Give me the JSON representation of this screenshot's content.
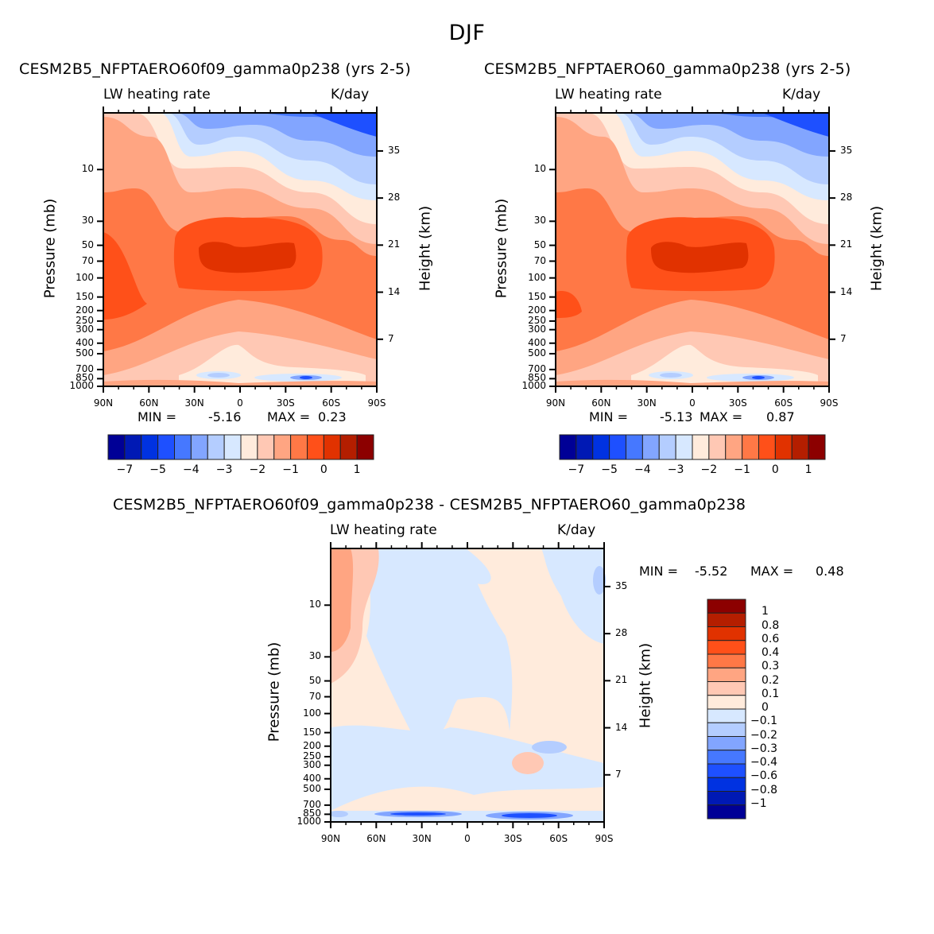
{
  "figure_title": "DJF",
  "palette": [
    "#000096",
    "#0019B4",
    "#0032E1",
    "#1E50FF",
    "#4678FF",
    "#82A5FF",
    "#B4CDFF",
    "#D7E8FF",
    "#FFEBDC",
    "#FFC8B4",
    "#FFA582",
    "#FF7846",
    "#FF5019",
    "#E13200",
    "#B41E00",
    "#8C0000"
  ],
  "chart_data": [
    {
      "type": "heatmap",
      "subtype": "latitude-pressure contour",
      "title": "CESM2B5_NFPTAERO60f09_gamma0p238 (yrs 2-5)",
      "variable_label": "LW heating rate",
      "units_label": "K/day",
      "xlabel": "",
      "ylabel": "Pressure (mb)",
      "y2label": "Height (km)",
      "x_ticks": [
        "90N",
        "60N",
        "30N",
        "0",
        "30S",
        "60S",
        "90S"
      ],
      "x_range": [
        90,
        -90
      ],
      "y_ticks": [
        "10",
        "30",
        "50",
        "70",
        "100",
        "150",
        "200",
        "250",
        "300",
        "400",
        "500",
        "700",
        "850",
        "1000"
      ],
      "y2_ticks": [
        "35",
        "28",
        "21",
        "14",
        "7"
      ],
      "min_label": "MIN =",
      "min_value": "-5.16",
      "max_label": "MAX =",
      "max_value": "0.23",
      "colorbar_labels": [
        "-7",
        "-5",
        "-4",
        "-3",
        "-2",
        "-1",
        "0",
        "1"
      ],
      "colorbar_orientation": "horizontal",
      "description": "Strong LW cooling (red, -2 to -6) in tropical lower stratosphere near 70-100 mb; warming/weak cooling (blue) at upper levels toward 90S"
    },
    {
      "type": "heatmap",
      "subtype": "latitude-pressure contour",
      "title": "CESM2B5_NFPTAERO60_gamma0p238 (yrs 2-5)",
      "variable_label": "LW heating rate",
      "units_label": "K/day",
      "xlabel": "",
      "ylabel": "Pressure (mb)",
      "y2label": "Height (km)",
      "x_ticks": [
        "90N",
        "60N",
        "30N",
        "0",
        "30S",
        "60S",
        "90S"
      ],
      "x_range": [
        90,
        -90
      ],
      "y_ticks": [
        "10",
        "30",
        "50",
        "70",
        "100",
        "150",
        "200",
        "250",
        "300",
        "400",
        "500",
        "700",
        "850",
        "1000"
      ],
      "y2_ticks": [
        "35",
        "28",
        "21",
        "14",
        "7"
      ],
      "min_label": "MIN =",
      "min_value": "-5.13",
      "max_label": "MAX =",
      "max_value": "0.87",
      "colorbar_labels": [
        "-7",
        "-5",
        "-4",
        "-3",
        "-2",
        "-1",
        "0",
        "1"
      ],
      "colorbar_orientation": "horizontal"
    },
    {
      "type": "heatmap",
      "subtype": "latitude-pressure contour difference",
      "title": "CESM2B5_NFPTAERO60f09_gamma0p238 - CESM2B5_NFPTAERO60_gamma0p238",
      "variable_label": "LW heating rate",
      "units_label": "K/day",
      "xlabel": "",
      "ylabel": "Pressure (mb)",
      "y2label": "Height (km)",
      "x_ticks": [
        "90N",
        "60N",
        "30N",
        "0",
        "30S",
        "60S",
        "90S"
      ],
      "x_range": [
        90,
        -90
      ],
      "y_ticks": [
        "10",
        "30",
        "50",
        "70",
        "100",
        "150",
        "200",
        "250",
        "300",
        "400",
        "500",
        "700",
        "850",
        "1000"
      ],
      "y2_ticks": [
        "35",
        "28",
        "21",
        "14",
        "7"
      ],
      "min_label": "MIN =",
      "min_value": "-5.52",
      "max_label": "MAX =",
      "max_value": "0.48",
      "colorbar_labels": [
        "1",
        "0.8",
        "0.6",
        "0.4",
        "0.3",
        "0.2",
        "0.1",
        "0",
        "-0.1",
        "-0.2",
        "-0.3",
        "-0.4",
        "-0.6",
        "-0.8",
        "-1"
      ],
      "colorbar_orientation": "vertical"
    }
  ]
}
